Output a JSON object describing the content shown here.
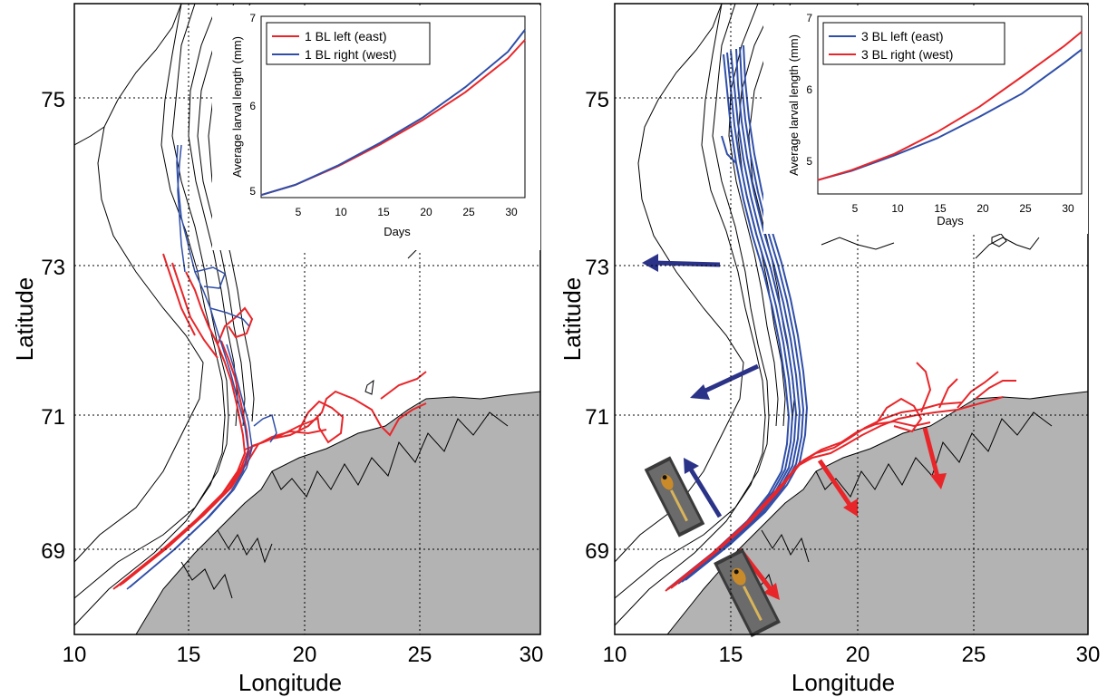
{
  "colors": {
    "land": "#b3b3b3",
    "red": "#e8262a",
    "blue": "#2f4ea8",
    "arrow_blue": "#2b3388",
    "contour": "#000000"
  },
  "panels": [
    {
      "id": "left",
      "lon_ticks": [
        "10",
        "15",
        "20",
        "25",
        "30"
      ],
      "lat_ticks": [
        "69",
        "71",
        "73",
        "75"
      ],
      "xlabel": "Longitude",
      "ylabel": "Latitude",
      "inset": {
        "ylabel": "Average larval length (mm)",
        "xlabel": "Days",
        "x_ticks": [
          "5",
          "10",
          "15",
          "20",
          "25",
          "30"
        ],
        "y_ticks": [
          "5",
          "6",
          "7"
        ],
        "legend": [
          {
            "label": "1 BL left (east)",
            "color": "#e8262a"
          },
          {
            "label": "1 BL right (west)",
            "color": "#2f4ea8"
          }
        ]
      }
    },
    {
      "id": "right",
      "lon_ticks": [
        "10",
        "15",
        "20",
        "25",
        "30"
      ],
      "lat_ticks": [
        "69",
        "71",
        "73",
        "75"
      ],
      "xlabel": "Longitude",
      "ylabel": "Latitude",
      "inset": {
        "ylabel": "Average larval length (mm)",
        "xlabel": "Days",
        "x_ticks": [
          "5",
          "10",
          "15",
          "20",
          "25",
          "30"
        ],
        "y_ticks": [
          "5",
          "6",
          "7"
        ],
        "legend": [
          {
            "label": "3 BL left (east)",
            "color": "#2f4ea8"
          },
          {
            "label": "3 BL right  (west)",
            "color": "#e8262a"
          }
        ]
      }
    }
  ],
  "chart_data": [
    {
      "type": "line",
      "xlabel": "Days",
      "ylabel": "Average larval length (mm)",
      "xlim": [
        1,
        32
      ],
      "ylim": [
        4.85,
        7
      ],
      "series": [
        {
          "name": "1 BL left (east)",
          "x": [
            1,
            5,
            10,
            15,
            20,
            25,
            30,
            32
          ],
          "y": [
            4.88,
            5.0,
            5.22,
            5.48,
            5.77,
            6.1,
            6.5,
            6.72
          ]
        },
        {
          "name": "1 BL right (west)",
          "x": [
            1,
            5,
            10,
            15,
            20,
            25,
            30,
            32
          ],
          "y": [
            4.88,
            5.0,
            5.23,
            5.5,
            5.8,
            6.16,
            6.58,
            6.84
          ]
        }
      ]
    },
    {
      "type": "line",
      "xlabel": "Days",
      "ylabel": "Average larval length (mm)",
      "xlim": [
        1,
        32
      ],
      "ylim": [
        4.7,
        7
      ],
      "series": [
        {
          "name": "3 BL left (east)",
          "x": [
            1,
            5,
            10,
            15,
            20,
            25,
            30,
            32
          ],
          "y": [
            4.88,
            5.0,
            5.2,
            5.42,
            5.7,
            6.0,
            6.4,
            6.57
          ]
        },
        {
          "name": "3 BL right  (west)",
          "x": [
            1,
            5,
            10,
            15,
            20,
            25,
            30,
            32
          ],
          "y": [
            4.88,
            5.01,
            5.22,
            5.5,
            5.83,
            6.22,
            6.62,
            6.8
          ]
        }
      ]
    }
  ]
}
